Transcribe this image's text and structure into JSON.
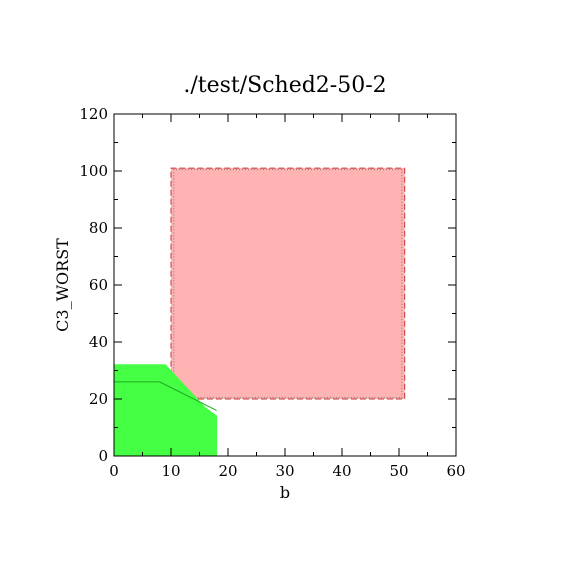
{
  "chart_data": {
    "type": "area",
    "title": "./test/Sched2-50-2",
    "xlabel": "b",
    "ylabel": "C3_WORST",
    "xlim": [
      0,
      60
    ],
    "ylim": [
      0,
      120
    ],
    "xticks": [
      0,
      10,
      20,
      30,
      40,
      50,
      60
    ],
    "yticks": [
      0,
      20,
      40,
      60,
      80,
      100,
      120
    ],
    "grid": false,
    "colors": {
      "red_fill": "#ffb3b3",
      "red_edge": "#cc3333",
      "green_fill": "#44ff44",
      "green_edge": "#22aa22"
    },
    "regions": [
      {
        "fill": "red",
        "polygon": [
          [
            10,
            20
          ],
          [
            51,
            20
          ],
          [
            51,
            101
          ],
          [
            10,
            101
          ]
        ],
        "inner_dotted": [
          [
            10.5,
            20.5
          ],
          [
            50.5,
            20.5
          ],
          [
            50.5,
            100.5
          ],
          [
            10.5,
            100.5
          ]
        ]
      },
      {
        "fill": "green",
        "polygon": [
          [
            0,
            0
          ],
          [
            18,
            0
          ],
          [
            18,
            14
          ],
          [
            16,
            17
          ],
          [
            9,
            32
          ],
          [
            0,
            32
          ]
        ],
        "inner_line": [
          [
            0,
            26
          ],
          [
            8,
            26
          ],
          [
            10.5,
            23.5
          ],
          [
            18,
            16
          ]
        ]
      }
    ]
  }
}
